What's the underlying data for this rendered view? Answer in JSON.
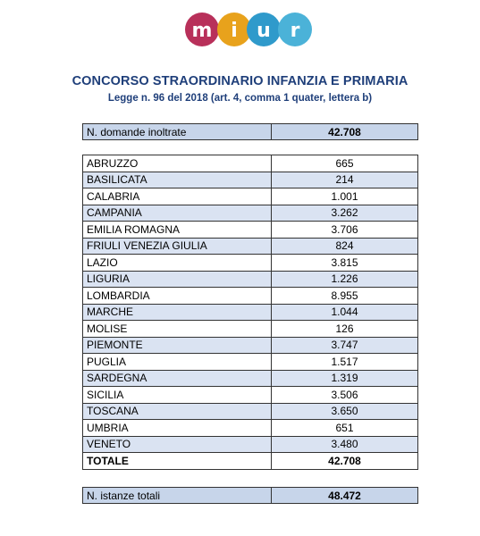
{
  "header": {
    "logo_text": "MIUR",
    "title": "CONCORSO STRAORDINARIO INFANZIA E PRIMARIA",
    "subtitle": "Legge n. 96 del 2018 (art. 4, comma 1 quater, lettera b)"
  },
  "summary_top": {
    "label": "N. domande inoltrate",
    "value": "42.708"
  },
  "regions": [
    {
      "name": "ABRUZZO",
      "value": "665"
    },
    {
      "name": "BASILICATA",
      "value": "214"
    },
    {
      "name": "CALABRIA",
      "value": "1.001"
    },
    {
      "name": "CAMPANIA",
      "value": "3.262"
    },
    {
      "name": "EMILIA ROMAGNA",
      "value": "3.706"
    },
    {
      "name": "FRIULI VENEZIA GIULIA",
      "value": "824"
    },
    {
      "name": "LAZIO",
      "value": "3.815"
    },
    {
      "name": "LIGURIA",
      "value": "1.226"
    },
    {
      "name": "LOMBARDIA",
      "value": "8.955"
    },
    {
      "name": "MARCHE",
      "value": "1.044"
    },
    {
      "name": "MOLISE",
      "value": "126"
    },
    {
      "name": "PIEMONTE",
      "value": "3.747"
    },
    {
      "name": "PUGLIA",
      "value": "1.517"
    },
    {
      "name": "SARDEGNA",
      "value": "1.319"
    },
    {
      "name": "SICILIA",
      "value": "3.506"
    },
    {
      "name": "TOSCANA",
      "value": "3.650"
    },
    {
      "name": "UMBRIA",
      "value": "651"
    },
    {
      "name": "VENETO",
      "value": "3.480"
    }
  ],
  "total": {
    "label": "TOTALE",
    "value": "42.708"
  },
  "summary_bottom": {
    "label": "N. istanze totali",
    "value": "48.472"
  },
  "colors": {
    "title": "#1f3f7a",
    "summary_fill": "#c7d5ea",
    "row_alt_fill": "#dae3f2",
    "logo_m": "#b8305a",
    "logo_i": "#e8a21c",
    "logo_u": "#2f9acb",
    "logo_r": "#4bb2d8"
  }
}
